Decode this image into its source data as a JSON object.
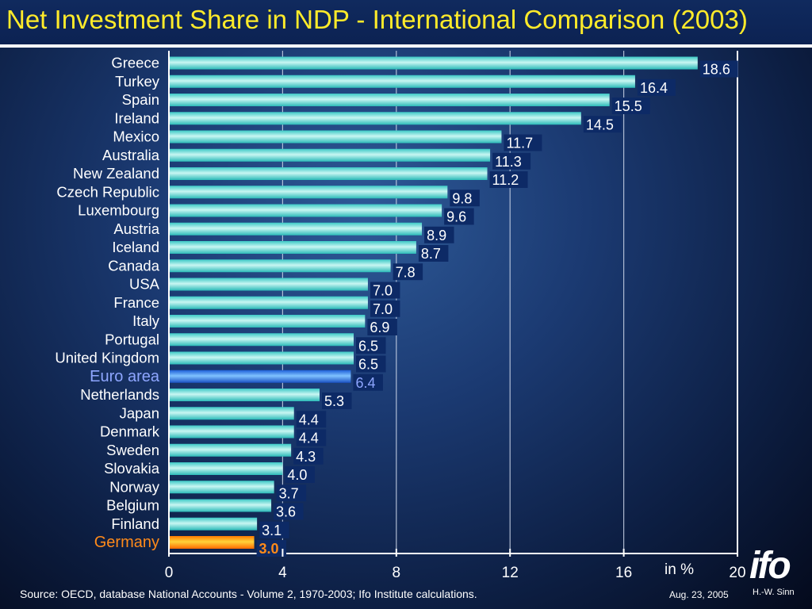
{
  "title": "Net Investment Share in NDP - International Comparison (2003)",
  "footer": {
    "source": "Source: OECD, database National Accounts - Volume 2, 1970-2003; Ifo Institute calculations.",
    "date": "Aug. 23, 2005",
    "logo": "ifo",
    "author": "H.-W. Sinn",
    "unit": "in %"
  },
  "colors": {
    "title": "#ffeb2a",
    "bar": "#4fd6d2",
    "euro_bar": "#2f7ff0",
    "euro_label": "#8ea6ff",
    "germany_bar": "#ff9a00",
    "germany_label": "#ff8a1a",
    "value_box": "#0d2a66"
  },
  "chart_data": {
    "type": "bar",
    "orientation": "horizontal",
    "categories": [
      "Greece",
      "Turkey",
      "Spain",
      "Ireland",
      "Mexico",
      "Australia",
      "New Zealand",
      "Czech Republic",
      "Luxembourg",
      "Austria",
      "Iceland",
      "Canada",
      "USA",
      "France",
      "Italy",
      "Portugal",
      "United Kingdom",
      "Euro area",
      "Netherlands",
      "Japan",
      "Denmark",
      "Sweden",
      "Slovakia",
      "Norway",
      "Belgium",
      "Finland",
      "Germany"
    ],
    "values": [
      18.6,
      16.4,
      15.5,
      14.5,
      11.7,
      11.3,
      11.2,
      9.8,
      9.6,
      8.9,
      8.7,
      7.8,
      7.0,
      7.0,
      6.9,
      6.5,
      6.5,
      6.4,
      5.3,
      4.4,
      4.4,
      4.3,
      4.0,
      3.7,
      3.6,
      3.1,
      3.0
    ],
    "value_labels": [
      "18.6",
      "16.4",
      "15.5",
      "14.5",
      "11.7",
      "11.3",
      "11.2",
      "9.8",
      "9.6",
      "8.9",
      "8.7",
      "7.8",
      "7.0",
      "7.0",
      "6.9",
      "6.5",
      "6.5",
      "6.4",
      "5.3",
      "4.4",
      "4.4",
      "4.3",
      "4.0",
      "3.7",
      "3.6",
      "3.1",
      "3.0"
    ],
    "highlight": {
      "Euro area": "euro",
      "Germany": "germany"
    },
    "xticks": [
      "0",
      "4",
      "8",
      "12",
      "16",
      "20"
    ],
    "xlim": [
      0,
      20
    ],
    "xlabel": "in %",
    "grid": true
  }
}
